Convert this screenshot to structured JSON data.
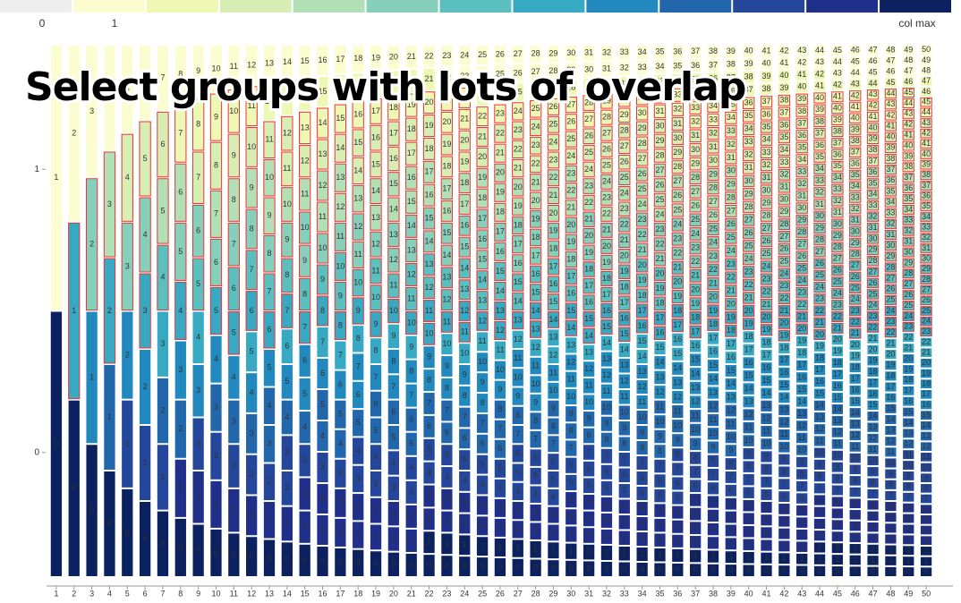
{
  "chart_data": {
    "type": "group-columns",
    "title": "Select groups with lots of overlap",
    "legend_labels": [
      "0",
      "1",
      "col max"
    ],
    "colors": [
      "#eeeeee",
      "#fbfdd0",
      "#eef7b4",
      "#d6eeb3",
      "#b2e0b6",
      "#86cfbb",
      "#5bbfc0",
      "#38a9c3",
      "#2189bd",
      "#2267ac",
      "#24479c",
      "#20308a",
      "#0c2160"
    ],
    "categories": [
      1,
      2,
      3,
      4,
      5,
      6,
      7,
      8,
      9,
      10,
      11,
      12,
      13,
      14,
      15,
      16,
      17,
      18,
      19,
      20,
      21,
      22,
      23,
      24,
      25,
      26,
      27,
      28,
      29,
      30,
      31,
      32,
      33,
      34,
      35,
      36,
      37,
      38,
      39,
      40,
      41,
      42,
      43,
      44,
      45,
      46,
      47,
      48,
      49,
      50
    ],
    "group_labels": [
      0,
      1,
      2,
      3,
      4,
      5,
      6,
      7,
      8,
      9,
      10,
      11,
      12,
      13,
      14,
      15,
      16,
      17,
      18,
      19,
      20,
      21,
      22,
      23,
      24,
      25,
      26,
      27,
      28,
      29,
      30,
      31,
      32,
      33,
      34,
      35,
      36,
      37,
      38,
      39,
      40,
      41,
      42,
      43,
      44,
      45,
      46,
      47,
      48,
      49,
      50
    ],
    "ylim": [
      -0.44,
      1.44
    ],
    "yticks": [
      0,
      1
    ]
  }
}
